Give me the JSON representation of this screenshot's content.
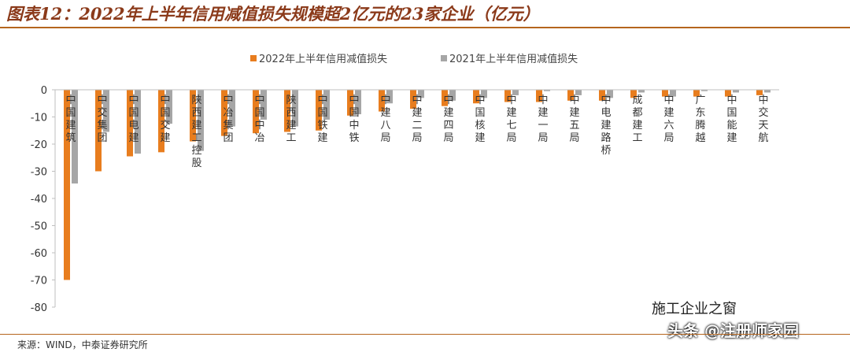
{
  "header": {
    "title": "图表12：2022年上半年信用减值损失规模超2亿元的23家企业（亿元）"
  },
  "footer": {
    "source": "来源：WIND，中泰证券研究所"
  },
  "watermark": {
    "line1": "施工企业之窗",
    "line2": "头条 @注册师家园"
  },
  "chart_data": {
    "type": "bar",
    "title": "",
    "xlabel": "",
    "ylabel": "",
    "ylim": [
      -80,
      0
    ],
    "yticks": [
      0,
      -10,
      -20,
      -30,
      -40,
      -50,
      -60,
      -70,
      -80
    ],
    "legend_position": "top-center",
    "categories": [
      "中国建筑",
      "中交集团",
      "中国电建",
      "中国交建",
      "陕西建工控股",
      "中冶集团",
      "中国中冶",
      "陕西建工",
      "中国铁建",
      "中国中铁",
      "中建八局",
      "中建二局",
      "中建四局",
      "中国核建",
      "中建七局",
      "中建一局",
      "中建五局",
      "中电建路桥",
      "成都建工",
      "中建六局",
      "广东腾越",
      "中国能建",
      "中交天航"
    ],
    "series": [
      {
        "name": "2022年上半年信用减值损失",
        "color": "#e87d1e",
        "values": [
          -70,
          -30,
          -24.5,
          -23,
          -19,
          -17,
          -16,
          -15.5,
          -15,
          -9.5,
          -8,
          -7,
          -6,
          -5,
          -4.5,
          -4.5,
          -4,
          -4,
          -3,
          -2.5,
          -2.5,
          -2.5,
          -2
        ]
      },
      {
        "name": "2021年上半年信用减值损失",
        "color": "#a6a6a6",
        "values": [
          -34.5,
          -15.5,
          -23.5,
          -12.5,
          -22.5,
          -13.5,
          -11,
          -13.5,
          -11,
          -9,
          -5,
          -3,
          -4,
          -3,
          -2,
          -0.5,
          -2,
          -3,
          -1,
          -2.5,
          -0.5,
          -1,
          -1
        ]
      }
    ]
  }
}
